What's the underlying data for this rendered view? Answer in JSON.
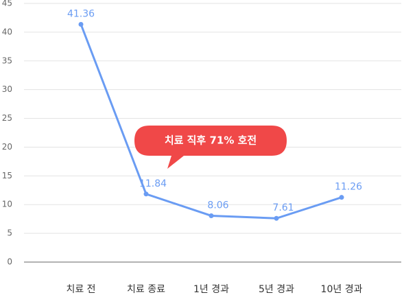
{
  "chart_data": {
    "type": "line",
    "categories": [
      "치료 전",
      "치료 종료",
      "1년 경과",
      "5년 경과",
      "10년 경과"
    ],
    "series": [
      {
        "color": "#6a9cf3",
        "values": [
          41.36,
          11.84,
          8.06,
          7.61,
          11.26
        ]
      }
    ],
    "ylim": [
      0,
      45
    ],
    "yticks": [
      0,
      5,
      10,
      15,
      20,
      25,
      30,
      35,
      40,
      45
    ],
    "grid": true,
    "annotation": "치료 직후 71% 호전",
    "annotation_color": "#f04848"
  }
}
